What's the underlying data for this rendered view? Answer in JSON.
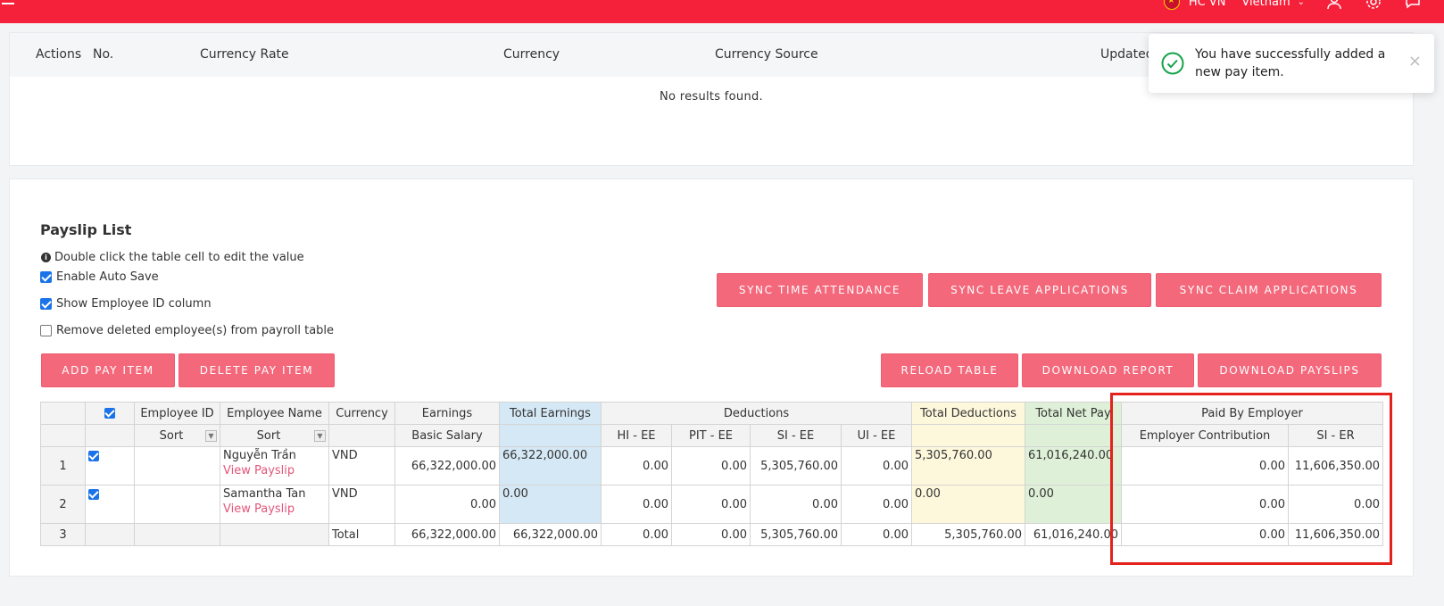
{
  "topbar": {
    "company": "HC VN",
    "language": "Vietnam",
    "menu_icon": "hamburger-icon",
    "icons": [
      "user-icon",
      "gear-icon",
      "chat-icon"
    ]
  },
  "currency_table": {
    "columns": [
      "Actions",
      "No.",
      "Currency Rate",
      "Currency",
      "Currency Source",
      "Updated"
    ],
    "empty_text": "No results found."
  },
  "toast": {
    "message": "You have successfully added a new pay item.",
    "icon": "check-circle-icon",
    "close": "×"
  },
  "payslip": {
    "title": "Payslip List",
    "hint": "Double click the table cell to edit the value",
    "checkboxes": [
      {
        "label": "Enable Auto Save",
        "checked": true
      },
      {
        "label": "Show Employee ID column",
        "checked": true
      },
      {
        "label": "Remove deleted employee(s) from payroll table",
        "checked": false
      }
    ],
    "buttons": {
      "sync_time": "SYNC TIME ATTENDANCE",
      "sync_leave": "SYNC LEAVE APPLICATIONS",
      "sync_claim": "SYNC CLAIM APPLICATIONS",
      "add_pay_item": "ADD PAY ITEM",
      "delete_pay_item": "DELETE PAY ITEM",
      "reload_table": "RELOAD TABLE",
      "download_report": "DOWNLOAD REPORT",
      "download_payslips": "DOWNLOAD PAYSLIPS"
    }
  },
  "grid": {
    "header1": {
      "employee_id": "Employee ID",
      "employee_name": "Employee Name",
      "currency": "Currency",
      "earnings": "Earnings",
      "total_earnings": "Total Earnings",
      "deductions": "Deductions",
      "total_deductions": "Total Deductions",
      "total_net_pay": "Total Net Pay",
      "paid_by_employer": "Paid By Employer"
    },
    "header2": {
      "sort_id": "Sort",
      "sort_name": "Sort",
      "basic_salary": "Basic Salary",
      "hi_ee": "HI - EE",
      "pit_ee": "PIT - EE",
      "si_ee": "SI - EE",
      "ui_ee": "UI - EE",
      "employer_contribution": "Employer Contribution",
      "si_er": "SI - ER"
    },
    "rows": [
      {
        "no": "1",
        "name": "Nguyễn Trần",
        "link": "View Payslip",
        "currency": "VND",
        "basic": "66,322,000.00",
        "total_earn": "66,322,000.00",
        "hi": "0.00",
        "pit": "0.00",
        "si": "5,305,760.00",
        "ui": "0.00",
        "total_ded": "5,305,760.00",
        "net": "61,016,240.00",
        "contrib": "0.00",
        "si_er": "11,606,350.00"
      },
      {
        "no": "2",
        "name": "Samantha Tan",
        "link": "View Payslip",
        "currency": "VND",
        "basic": "0.00",
        "total_earn": "0.00",
        "hi": "0.00",
        "pit": "0.00",
        "si": "0.00",
        "ui": "0.00",
        "total_ded": "0.00",
        "net": "0.00",
        "contrib": "0.00",
        "si_er": "0.00"
      }
    ],
    "total": {
      "no": "3",
      "label": "Total",
      "basic": "66,322,000.00",
      "total_earn": "66,322,000.00",
      "hi": "0.00",
      "pit": "0.00",
      "si": "5,305,760.00",
      "ui": "0.00",
      "total_ded": "5,305,760.00",
      "net": "61,016,240.00",
      "contrib": "0.00",
      "si_er": "11,606,350.00"
    }
  }
}
